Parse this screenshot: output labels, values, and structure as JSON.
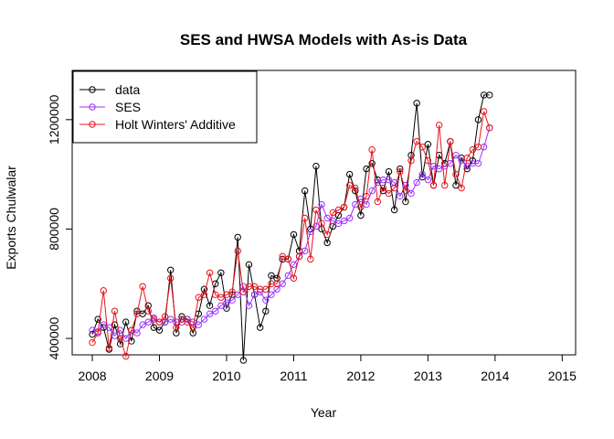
{
  "chart_data": {
    "type": "line",
    "title": "SES and HWSA Models with As-is Data",
    "xlabel": "Year",
    "ylabel": "Exports Chulwalar",
    "xlim": [
      2007.7,
      2015.2
    ],
    "ylim": [
      340000,
      1380000
    ],
    "x_ticks": [
      2008,
      2009,
      2010,
      2011,
      2012,
      2013,
      2014,
      2015
    ],
    "x_tick_labels": [
      "2008",
      "2009",
      "2010",
      "2011",
      "2012",
      "2013",
      "2014",
      "2015"
    ],
    "y_ticks": [
      400000,
      800000,
      1200000
    ],
    "y_tick_labels": [
      "400000",
      "800000",
      "1200000"
    ],
    "start": 2008,
    "frequency": 12,
    "grid": false,
    "legend_position": "top-left",
    "marker": "open-circle",
    "series": [
      {
        "name": "data",
        "color": "#000000",
        "values": [
          415000,
          470000,
          440000,
          360000,
          450000,
          380000,
          460000,
          390000,
          500000,
          490000,
          520000,
          440000,
          430000,
          460000,
          650000,
          420000,
          480000,
          470000,
          420000,
          490000,
          580000,
          520000,
          600000,
          640000,
          510000,
          560000,
          770000,
          320000,
          670000,
          560000,
          440000,
          500000,
          630000,
          620000,
          690000,
          690000,
          780000,
          720000,
          940000,
          800000,
          1030000,
          800000,
          750000,
          810000,
          850000,
          880000,
          1000000,
          940000,
          850000,
          1020000,
          1040000,
          980000,
          940000,
          1010000,
          870000,
          1020000,
          900000,
          1070000,
          1260000,
          990000,
          1110000,
          960000,
          1070000,
          1040000,
          1120000,
          960000,
          1060000,
          1020000,
          1050000,
          1200000,
          1290000,
          1290000
        ]
      },
      {
        "name": "SES",
        "color": "#9b30ff",
        "values": [
          430000,
          425000,
          450000,
          440000,
          410000,
          430000,
          400000,
          430000,
          420000,
          450000,
          460000,
          475000,
          460000,
          460000,
          470000,
          460000,
          460000,
          470000,
          460000,
          450000,
          470000,
          490000,
          500000,
          520000,
          530000,
          540000,
          560000,
          590000,
          520000,
          560000,
          570000,
          540000,
          560000,
          580000,
          600000,
          630000,
          670000,
          700000,
          720000,
          790000,
          810000,
          890000,
          840000,
          830000,
          820000,
          830000,
          840000,
          890000,
          910000,
          890000,
          940000,
          970000,
          980000,
          980000,
          970000,
          920000,
          960000,
          930000,
          970000,
          1000000,
          980000,
          1030000,
          1020000,
          1030000,
          1040000,
          1070000,
          1050000,
          1030000,
          1040000,
          1040000,
          1100000,
          1170000
        ]
      },
      {
        "name": "Holt Winters' Additive",
        "color": "#e8141c",
        "values": [
          385000,
          420000,
          575000,
          365000,
          500000,
          400000,
          335000,
          430000,
          490000,
          590000,
          500000,
          470000,
          460000,
          480000,
          620000,
          440000,
          470000,
          460000,
          440000,
          550000,
          560000,
          640000,
          560000,
          550000,
          560000,
          570000,
          720000,
          570000,
          590000,
          590000,
          580000,
          580000,
          600000,
          600000,
          700000,
          690000,
          620000,
          700000,
          840000,
          690000,
          870000,
          820000,
          780000,
          860000,
          870000,
          880000,
          960000,
          950000,
          880000,
          920000,
          1090000,
          900000,
          950000,
          930000,
          950000,
          1010000,
          940000,
          1050000,
          1120000,
          1100000,
          1050000,
          960000,
          1180000,
          960000,
          1120000,
          1000000,
          950000,
          1060000,
          1090000,
          1100000,
          1230000,
          1170000
        ]
      }
    ]
  }
}
